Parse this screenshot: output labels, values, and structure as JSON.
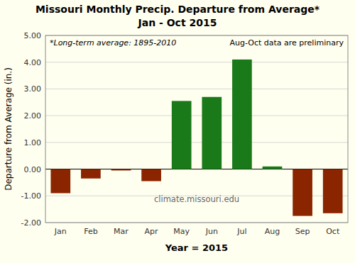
{
  "chart_data": {
    "type": "bar",
    "title": "Missouri Monthly Precip. Departure from Average*",
    "subtitle": "Jan - Oct 2015",
    "x_label": "Year = 2015",
    "y_label": "Departure from Average (in.)",
    "categories": [
      "Jan",
      "Feb",
      "Mar",
      "Apr",
      "May",
      "Jun",
      "Jul",
      "Aug",
      "Sep",
      "Oct"
    ],
    "values": [
      -0.9,
      -0.35,
      -0.05,
      -0.45,
      2.55,
      2.7,
      4.1,
      0.1,
      -1.75,
      -1.65
    ],
    "colors": [
      "#8B2500",
      "#8B2500",
      "#8B2500",
      "#8B2500",
      "#1a7a1a",
      "#1a7a1a",
      "#1a7a1a",
      "#1a7a1a",
      "#8B2500",
      "#8B2500"
    ],
    "ylim": [
      -2.0,
      5.0
    ],
    "yticks": [
      {
        "value": -2.0,
        "label": "-2.00"
      },
      {
        "value": -1.0,
        "label": "-1.00"
      },
      {
        "value": 0.0,
        "label": "0.00"
      },
      {
        "value": 1.0,
        "label": "1.00"
      },
      {
        "value": 2.0,
        "label": "2.00"
      },
      {
        "value": 3.0,
        "label": "3.00"
      },
      {
        "value": 4.0,
        "label": "4.00"
      },
      {
        "value": 5.0,
        "label": "5.00"
      }
    ],
    "grid": true,
    "annotations": [
      "*Long-term average: 1895-2010",
      "Aug-Oct data are preliminary",
      "climate.missouri.edu"
    ]
  }
}
